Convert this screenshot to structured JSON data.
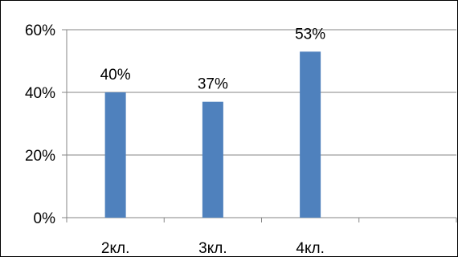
{
  "chart_data": {
    "type": "bar",
    "categories": [
      "2кл.",
      "3кл.",
      "4кл.",
      ""
    ],
    "series": [
      {
        "values": [
          40,
          37,
          53,
          null
        ],
        "color": "#4F81BD"
      }
    ],
    "data_labels": [
      "40%",
      "37%",
      "53%",
      ""
    ],
    "y_ticks": [
      "0%",
      "20%",
      "40%",
      "60%"
    ],
    "ylim": [
      0,
      60
    ],
    "grid": true,
    "legend": "none"
  }
}
